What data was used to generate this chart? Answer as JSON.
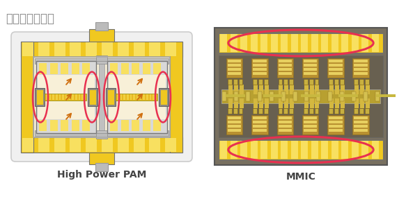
{
  "title": "功率放大器模块",
  "title_color": "#888888",
  "title_fontsize": 12,
  "bg_color": "#ffffff",
  "label1": "High Power PAM",
  "label2": "MMIC",
  "label_fontsize": 10,
  "label_color": "#444444",
  "yellow": "#f0c820",
  "yellow_light": "#f8e060",
  "yellow_stripe": "#f5d840",
  "gray_dark": "#707070",
  "gray_med": "#999999",
  "gray_light": "#bbbbbb",
  "red_ellipse": "#e83050",
  "orange": "#d07010",
  "pam_bg": "#f8f0d8",
  "pam_outer_bg": "#eeeeee",
  "mmic_bg": "#808070",
  "mmic_inner": "#707060"
}
